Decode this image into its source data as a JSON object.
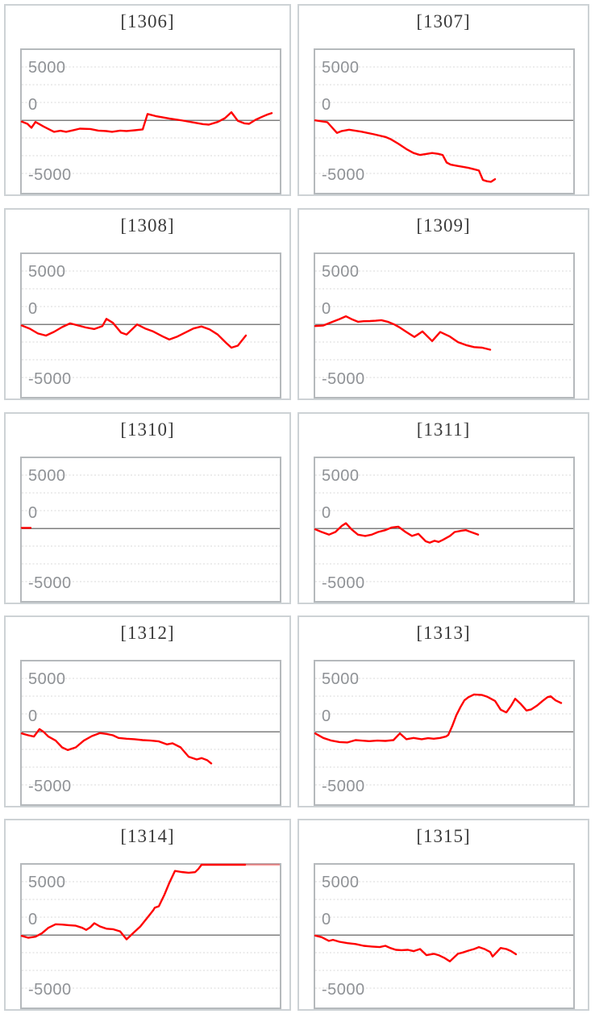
{
  "page": {
    "background": "#ffffff"
  },
  "axis": {
    "tick_labels": [
      "5000",
      "0",
      "-5000"
    ],
    "labels": [
      {
        "text": "5000",
        "value": 5000,
        "dy": 0
      },
      {
        "text": "0",
        "value": 0,
        "dy": -20
      },
      {
        "text": "-5000",
        "value": -5000,
        "dy": 1
      }
    ],
    "grid_values": [
      5000,
      3333,
      1667,
      -1667,
      -3333,
      -5000
    ],
    "label_color": "#8f9296",
    "grid_color": "#d9d9d9",
    "zero_line_color": "#7f7f7f"
  },
  "series_style": {
    "color": "#ff0000",
    "width": 2.4,
    "clipped_tail_color": "rgba(255,0,0,0.35)"
  },
  "chart_data": [
    {
      "type": "line",
      "title": "[1306]",
      "ylim": [
        -6800,
        6600
      ],
      "yticks": [
        5000,
        0,
        -5000
      ],
      "points": [
        [
          0,
          -125
        ],
        [
          7,
          -330
        ],
        [
          12,
          -700
        ],
        [
          17,
          -150
        ],
        [
          27,
          -580
        ],
        [
          40,
          -1080
        ],
        [
          48,
          -980
        ],
        [
          55,
          -1080
        ],
        [
          65,
          -910
        ],
        [
          72,
          -780
        ],
        [
          85,
          -810
        ],
        [
          95,
          -960
        ],
        [
          105,
          -1010
        ],
        [
          112,
          -1080
        ],
        [
          122,
          -960
        ],
        [
          130,
          -1000
        ],
        [
          140,
          -930
        ],
        [
          150,
          -850
        ],
        [
          156,
          600
        ],
        [
          166,
          400
        ],
        [
          183,
          175
        ],
        [
          200,
          -25
        ],
        [
          213,
          -200
        ],
        [
          225,
          -360
        ],
        [
          232,
          -400
        ],
        [
          243,
          -150
        ],
        [
          252,
          200
        ],
        [
          260,
          760
        ],
        [
          268,
          -50
        ],
        [
          276,
          -280
        ],
        [
          282,
          -330
        ],
        [
          290,
          50
        ],
        [
          298,
          330
        ],
        [
          305,
          550
        ],
        [
          310,
          680
        ]
      ]
    },
    {
      "type": "line",
      "title": "[1307]",
      "ylim": [
        -6800,
        6600
      ],
      "yticks": [
        5000,
        0,
        -5000
      ],
      "points": [
        [
          0,
          0
        ],
        [
          15,
          -175
        ],
        [
          27,
          -1185
        ],
        [
          33,
          -1000
        ],
        [
          42,
          -880
        ],
        [
          57,
          -1060
        ],
        [
          73,
          -1310
        ],
        [
          87,
          -1560
        ],
        [
          93,
          -1740
        ],
        [
          103,
          -2190
        ],
        [
          113,
          -2700
        ],
        [
          122,
          -3070
        ],
        [
          130,
          -3250
        ],
        [
          138,
          -3150
        ],
        [
          145,
          -3070
        ],
        [
          153,
          -3150
        ],
        [
          158,
          -3250
        ],
        [
          163,
          -3960
        ],
        [
          168,
          -4160
        ],
        [
          175,
          -4260
        ],
        [
          183,
          -4360
        ],
        [
          190,
          -4460
        ],
        [
          197,
          -4590
        ],
        [
          203,
          -4710
        ],
        [
          208,
          -5600
        ],
        [
          213,
          -5720
        ],
        [
          218,
          -5770
        ],
        [
          223,
          -5520
        ]
      ]
    },
    {
      "type": "line",
      "title": "[1308]",
      "ylim": [
        -6800,
        6600
      ],
      "yticks": [
        5000,
        0,
        -5000
      ],
      "points": [
        [
          0,
          -100
        ],
        [
          10,
          -400
        ],
        [
          20,
          -850
        ],
        [
          30,
          -1050
        ],
        [
          40,
          -700
        ],
        [
          50,
          -250
        ],
        [
          60,
          100
        ],
        [
          70,
          -100
        ],
        [
          80,
          -300
        ],
        [
          90,
          -430
        ],
        [
          100,
          -150
        ],
        [
          105,
          520
        ],
        [
          113,
          150
        ],
        [
          123,
          -760
        ],
        [
          130,
          -950
        ],
        [
          143,
          0
        ],
        [
          153,
          -380
        ],
        [
          163,
          -660
        ],
        [
          175,
          -1140
        ],
        [
          183,
          -1420
        ],
        [
          193,
          -1140
        ],
        [
          203,
          -760
        ],
        [
          213,
          -380
        ],
        [
          223,
          -190
        ],
        [
          233,
          -470
        ],
        [
          243,
          -950
        ],
        [
          253,
          -1700
        ],
        [
          260,
          -2180
        ],
        [
          268,
          -1990
        ],
        [
          278,
          -1040
        ]
      ]
    },
    {
      "type": "line",
      "title": "[1309]",
      "ylim": [
        -6800,
        6600
      ],
      "yticks": [
        5000,
        0,
        -5000
      ],
      "points": [
        [
          0,
          -150
        ],
        [
          10,
          -100
        ],
        [
          20,
          200
        ],
        [
          30,
          500
        ],
        [
          38,
          760
        ],
        [
          45,
          500
        ],
        [
          53,
          250
        ],
        [
          60,
          300
        ],
        [
          68,
          320
        ],
        [
          75,
          350
        ],
        [
          82,
          400
        ],
        [
          90,
          250
        ],
        [
          98,
          0
        ],
        [
          105,
          -300
        ],
        [
          113,
          -700
        ],
        [
          123,
          -1180
        ],
        [
          133,
          -660
        ],
        [
          145,
          -1560
        ],
        [
          155,
          -710
        ],
        [
          167,
          -1140
        ],
        [
          177,
          -1660
        ],
        [
          187,
          -1940
        ],
        [
          197,
          -2130
        ],
        [
          207,
          -2180
        ],
        [
          217,
          -2370
        ]
      ]
    },
    {
      "type": "line",
      "title": "[1310]",
      "ylim": [
        -6800,
        6600
      ],
      "yticks": [
        5000,
        0,
        -5000
      ],
      "points": [
        [
          0,
          60
        ],
        [
          11,
          60
        ]
      ]
    },
    {
      "type": "line",
      "title": "[1311]",
      "ylim": [
        -6800,
        6600
      ],
      "yticks": [
        5000,
        0,
        -5000
      ],
      "points": [
        [
          0,
          -75
        ],
        [
          8,
          -330
        ],
        [
          17,
          -580
        ],
        [
          25,
          -330
        ],
        [
          33,
          250
        ],
        [
          38,
          500
        ],
        [
          45,
          -75
        ],
        [
          53,
          -580
        ],
        [
          62,
          -700
        ],
        [
          70,
          -580
        ],
        [
          78,
          -330
        ],
        [
          87,
          -150
        ],
        [
          95,
          100
        ],
        [
          103,
          175
        ],
        [
          112,
          -330
        ],
        [
          120,
          -700
        ],
        [
          128,
          -500
        ],
        [
          137,
          -1200
        ],
        [
          142,
          -1330
        ],
        [
          148,
          -1150
        ],
        [
          153,
          -1260
        ],
        [
          158,
          -1080
        ],
        [
          167,
          -700
        ],
        [
          173,
          -330
        ],
        [
          182,
          -200
        ],
        [
          187,
          -150
        ],
        [
          193,
          -330
        ],
        [
          202,
          -580
        ]
      ]
    },
    {
      "type": "line",
      "title": "[1312]",
      "ylim": [
        -6800,
        6600
      ],
      "yticks": [
        5000,
        0,
        -5000
      ],
      "points": [
        [
          0,
          -150
        ],
        [
          8,
          -330
        ],
        [
          15,
          -450
        ],
        [
          22,
          250
        ],
        [
          27,
          0
        ],
        [
          33,
          -450
        ],
        [
          42,
          -830
        ],
        [
          50,
          -1460
        ],
        [
          57,
          -1710
        ],
        [
          67,
          -1460
        ],
        [
          77,
          -830
        ],
        [
          87,
          -400
        ],
        [
          97,
          -125
        ],
        [
          105,
          -200
        ],
        [
          113,
          -330
        ],
        [
          120,
          -580
        ],
        [
          130,
          -650
        ],
        [
          140,
          -700
        ],
        [
          150,
          -780
        ],
        [
          160,
          -830
        ],
        [
          170,
          -900
        ],
        [
          180,
          -1180
        ],
        [
          187,
          -1080
        ],
        [
          197,
          -1460
        ],
        [
          207,
          -2340
        ],
        [
          217,
          -2600
        ],
        [
          223,
          -2470
        ],
        [
          230,
          -2670
        ],
        [
          235,
          -2970
        ]
      ]
    },
    {
      "type": "line",
      "title": "[1313]",
      "ylim": [
        -6800,
        6600
      ],
      "yticks": [
        5000,
        0,
        -5000
      ],
      "points": [
        [
          0,
          -150
        ],
        [
          10,
          -580
        ],
        [
          20,
          -830
        ],
        [
          30,
          -960
        ],
        [
          40,
          -1000
        ],
        [
          50,
          -780
        ],
        [
          57,
          -830
        ],
        [
          67,
          -880
        ],
        [
          77,
          -830
        ],
        [
          87,
          -860
        ],
        [
          97,
          -780
        ],
        [
          105,
          -150
        ],
        [
          113,
          -700
        ],
        [
          122,
          -580
        ],
        [
          132,
          -700
        ],
        [
          140,
          -600
        ],
        [
          147,
          -650
        ],
        [
          155,
          -580
        ],
        [
          162,
          -450
        ],
        [
          165,
          -300
        ],
        [
          170,
          550
        ],
        [
          175,
          1550
        ],
        [
          180,
          2300
        ],
        [
          185,
          2950
        ],
        [
          190,
          3250
        ],
        [
          197,
          3500
        ],
        [
          207,
          3450
        ],
        [
          213,
          3300
        ],
        [
          223,
          2900
        ],
        [
          230,
          2070
        ],
        [
          237,
          1815
        ],
        [
          243,
          2450
        ],
        [
          248,
          3100
        ],
        [
          255,
          2600
        ],
        [
          262,
          2000
        ],
        [
          268,
          2100
        ],
        [
          275,
          2450
        ],
        [
          282,
          2900
        ],
        [
          288,
          3250
        ],
        [
          292,
          3330
        ],
        [
          298,
          2950
        ],
        [
          305,
          2700
        ]
      ]
    },
    {
      "type": "line",
      "title": "[1314]",
      "ylim": [
        -6800,
        6600
      ],
      "yticks": [
        5000,
        0,
        -5000
      ],
      "points": [
        [
          0,
          -75
        ],
        [
          8,
          -250
        ],
        [
          17,
          -150
        ],
        [
          25,
          175
        ],
        [
          33,
          680
        ],
        [
          42,
          1010
        ],
        [
          50,
          980
        ],
        [
          58,
          930
        ],
        [
          67,
          880
        ],
        [
          75,
          680
        ],
        [
          80,
          480
        ],
        [
          85,
          730
        ],
        [
          90,
          1110
        ],
        [
          97,
          810
        ],
        [
          105,
          600
        ],
        [
          113,
          550
        ],
        [
          122,
          350
        ],
        [
          130,
          -400
        ],
        [
          138,
          175
        ],
        [
          147,
          800
        ],
        [
          155,
          1560
        ],
        [
          163,
          2320
        ],
        [
          165,
          2570
        ],
        [
          170,
          2700
        ],
        [
          177,
          3800
        ],
        [
          183,
          4900
        ],
        [
          190,
          6020
        ],
        [
          198,
          5920
        ],
        [
          207,
          5850
        ],
        [
          215,
          5900
        ],
        [
          219,
          6200
        ],
        [
          223,
          6600
        ],
        [
          277,
          6600
        ]
      ],
      "clipped_tail": [
        [
          277,
          6600
        ],
        [
          320,
          6600
        ]
      ]
    },
    {
      "type": "line",
      "title": "[1315]",
      "ylim": [
        -6800,
        6600
      ],
      "yticks": [
        5000,
        0,
        -5000
      ],
      "points": [
        [
          0,
          -50
        ],
        [
          8,
          -200
        ],
        [
          17,
          -550
        ],
        [
          22,
          -450
        ],
        [
          30,
          -630
        ],
        [
          40,
          -760
        ],
        [
          50,
          -840
        ],
        [
          60,
          -1010
        ],
        [
          70,
          -1080
        ],
        [
          80,
          -1130
        ],
        [
          87,
          -1010
        ],
        [
          93,
          -1210
        ],
        [
          100,
          -1390
        ],
        [
          107,
          -1420
        ],
        [
          115,
          -1390
        ],
        [
          122,
          -1510
        ],
        [
          130,
          -1310
        ],
        [
          138,
          -1890
        ],
        [
          147,
          -1760
        ],
        [
          153,
          -1890
        ],
        [
          160,
          -2140
        ],
        [
          167,
          -2470
        ],
        [
          177,
          -1760
        ],
        [
          183,
          -1640
        ],
        [
          190,
          -1460
        ],
        [
          197,
          -1310
        ],
        [
          203,
          -1130
        ],
        [
          210,
          -1310
        ],
        [
          217,
          -1590
        ],
        [
          220,
          -2015
        ],
        [
          230,
          -1210
        ],
        [
          237,
          -1310
        ],
        [
          243,
          -1510
        ],
        [
          249,
          -1800
        ]
      ]
    }
  ]
}
